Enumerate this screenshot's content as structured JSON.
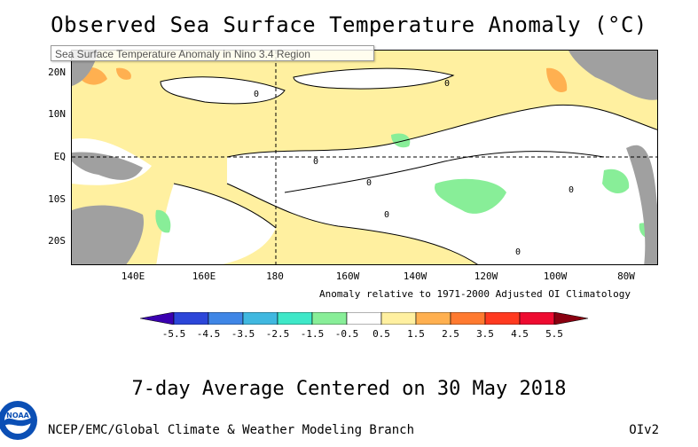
{
  "title": "Observed Sea Surface Temperature Anomaly (°C)",
  "tooltip": "Sea Surface Temperature Anomaly in Nino 3.4 Region",
  "map": {
    "latitude_labels": [
      "20N",
      "10N",
      "EQ",
      "10S",
      "20S"
    ],
    "longitude_labels": [
      "140E",
      "160E",
      "180",
      "160W",
      "140W",
      "120W",
      "100W",
      "80W"
    ],
    "contour_labels": [
      "0",
      "0",
      "0",
      "0",
      "0",
      "0",
      "0"
    ]
  },
  "anomaly_note": "Anomaly relative to 1971-2000 Adjusted OI Climatology",
  "colorbar": {
    "ticks": [
      "-5.5",
      "-4.5",
      "-3.5",
      "-2.5",
      "-1.5",
      "-0.5",
      "0.5",
      "1.5",
      "2.5",
      "3.5",
      "4.5",
      "5.5"
    ],
    "colors": [
      "#3a00b0",
      "#2c46d9",
      "#3f86e6",
      "#40b8e0",
      "#3ee8c8",
      "#88ee98",
      "#ffffff",
      "#fff0a0",
      "#ffb050",
      "#ff7a30",
      "#ff3a20",
      "#ee0b30",
      "#8a0010"
    ]
  },
  "subtitle": "7-day Average Centered on 30 May 2018",
  "footer": {
    "left": "NCEP/EMC/Global Climate & Weather Modeling Branch",
    "right": "OIv2"
  },
  "logo": {
    "text": "NOAA"
  },
  "colors": {
    "land": "#a0a0a0",
    "warm": "#fff0a0",
    "neutral": "#ffffff",
    "cool": "#88ee98",
    "hot": "#ffb050"
  }
}
